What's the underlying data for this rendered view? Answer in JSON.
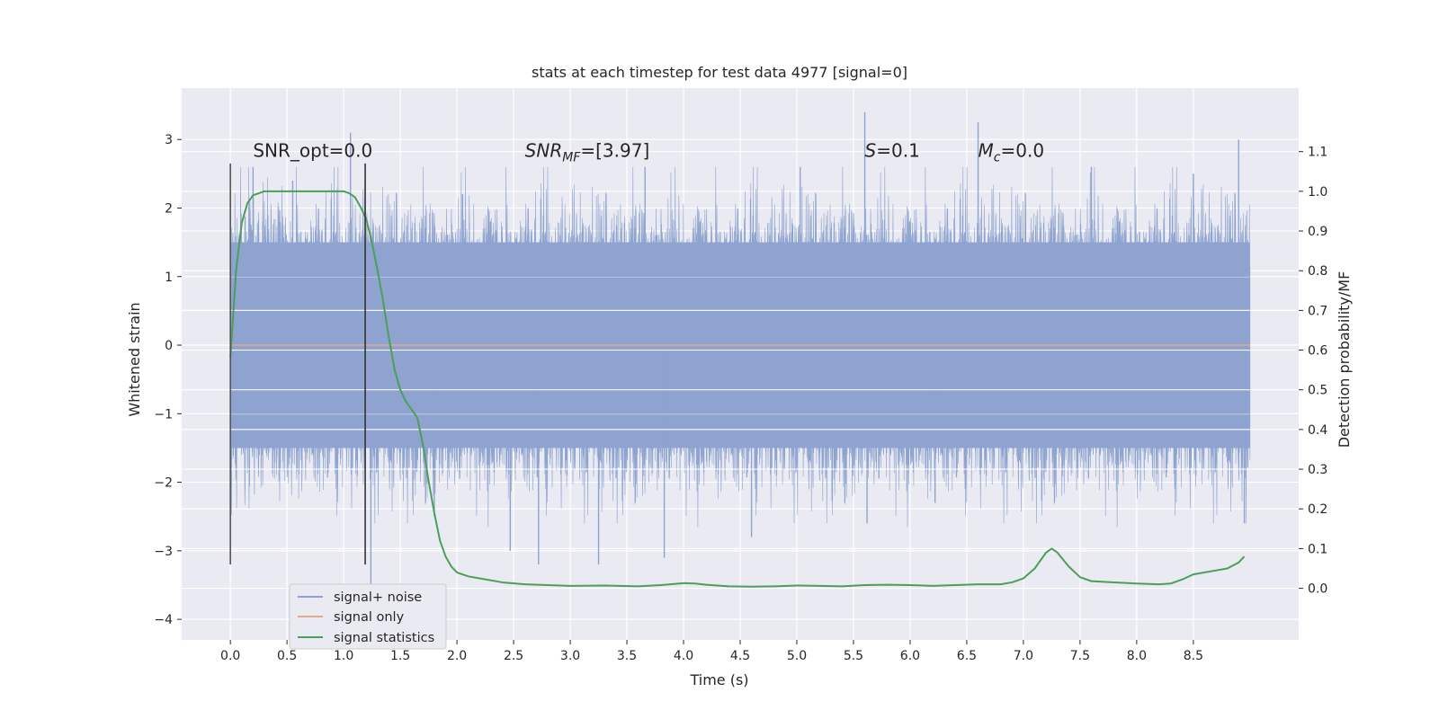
{
  "chart_data": {
    "type": "line",
    "title": "stats at each timestep for test data 4977 [signal=0]",
    "xlabel": "Time (s)",
    "ylabel": "Whitened strain",
    "y2label": "Detection probability/MF",
    "xlim": [
      -0.43,
      9.43
    ],
    "ylim": [
      -4.3,
      3.75
    ],
    "y2lim": [
      -0.13,
      1.26
    ],
    "xticks": [
      0.0,
      0.5,
      1.0,
      1.5,
      2.0,
      2.5,
      3.0,
      3.5,
      4.0,
      4.5,
      5.0,
      5.5,
      6.0,
      6.5,
      7.0,
      7.5,
      8.0,
      8.5
    ],
    "xtick_labels": [
      "0.0",
      "0.5",
      "1.0",
      "1.5",
      "2.0",
      "2.5",
      "3.0",
      "3.5",
      "4.0",
      "4.5",
      "5.0",
      "5.5",
      "6.0",
      "6.5",
      "7.0",
      "7.5",
      "8.0",
      "8.5"
    ],
    "yticks": [
      -4,
      -3,
      -2,
      -1,
      0,
      1,
      2,
      3
    ],
    "ytick_labels": [
      "−4",
      "−3",
      "−2",
      "−1",
      "0",
      "1",
      "2",
      "3"
    ],
    "y2ticks": [
      0.0,
      0.1,
      0.2,
      0.3,
      0.4,
      0.5,
      0.6,
      0.7,
      0.8,
      0.9,
      1.0,
      1.1
    ],
    "y2tick_labels": [
      "0.0",
      "0.1",
      "0.2",
      "0.3",
      "0.4",
      "0.5",
      "0.6",
      "0.7",
      "0.8",
      "0.9",
      "1.0",
      "1.1"
    ],
    "grid": true,
    "legend_position": "lower-left",
    "series": [
      {
        "name": "signal+ noise",
        "color": "#8ea3cf",
        "axis": "left",
        "style": "noise band",
        "x_range": [
          0.0,
          9.0
        ],
        "core_range": [
          -1.5,
          1.5
        ],
        "peaks": [
          {
            "x": 0.2,
            "y": 2.6
          },
          {
            "x": 0.55,
            "y": 2.4
          },
          {
            "x": 1.06,
            "y": 3.1
          },
          {
            "x": 1.24,
            "y": -3.6
          },
          {
            "x": 1.8,
            "y": -2.5
          },
          {
            "x": 2.05,
            "y": 2.2
          },
          {
            "x": 2.47,
            "y": -3.0
          },
          {
            "x": 2.72,
            "y": -3.2
          },
          {
            "x": 3.25,
            "y": -3.2
          },
          {
            "x": 3.66,
            "y": 2.6
          },
          {
            "x": 3.83,
            "y": -3.1
          },
          {
            "x": 4.6,
            "y": -2.8
          },
          {
            "x": 5.03,
            "y": 2.6
          },
          {
            "x": 5.6,
            "y": 3.4
          },
          {
            "x": 5.62,
            "y": -2.6
          },
          {
            "x": 6.22,
            "y": -2.3
          },
          {
            "x": 6.6,
            "y": 3.25
          },
          {
            "x": 7.6,
            "y": 2.6
          },
          {
            "x": 8.5,
            "y": 2.5
          },
          {
            "x": 8.9,
            "y": 3.0
          },
          {
            "x": 8.95,
            "y": -2.6
          }
        ]
      },
      {
        "name": "signal only",
        "color": "#e2a98f",
        "axis": "left",
        "x": [
          0.0,
          9.0
        ],
        "values": [
          0.0,
          0.0
        ]
      },
      {
        "name": "signal statistics",
        "color": "#4c9e5a",
        "axis": "right",
        "x": [
          0.0,
          0.05,
          0.1,
          0.15,
          0.2,
          0.3,
          0.5,
          0.7,
          0.9,
          1.0,
          1.05,
          1.1,
          1.15,
          1.2,
          1.25,
          1.3,
          1.35,
          1.4,
          1.45,
          1.5,
          1.55,
          1.6,
          1.65,
          1.7,
          1.75,
          1.8,
          1.85,
          1.9,
          1.95,
          2.0,
          2.1,
          2.2,
          2.4,
          2.6,
          2.8,
          3.0,
          3.3,
          3.6,
          3.8,
          4.0,
          4.1,
          4.2,
          4.4,
          4.6,
          4.8,
          5.0,
          5.2,
          5.4,
          5.6,
          5.8,
          6.0,
          6.2,
          6.4,
          6.6,
          6.8,
          6.9,
          7.0,
          7.1,
          7.2,
          7.25,
          7.3,
          7.4,
          7.5,
          7.6,
          7.8,
          8.0,
          8.2,
          8.3,
          8.4,
          8.5,
          8.6,
          8.7,
          8.8,
          8.9,
          8.95
        ],
        "values": [
          0.58,
          0.8,
          0.92,
          0.97,
          0.99,
          1.0,
          1.0,
          1.0,
          1.0,
          1.0,
          0.995,
          0.985,
          0.96,
          0.93,
          0.87,
          0.8,
          0.72,
          0.63,
          0.55,
          0.5,
          0.47,
          0.45,
          0.43,
          0.36,
          0.27,
          0.19,
          0.12,
          0.08,
          0.055,
          0.04,
          0.03,
          0.025,
          0.015,
          0.01,
          0.008,
          0.006,
          0.007,
          0.005,
          0.008,
          0.013,
          0.012,
          0.009,
          0.005,
          0.004,
          0.005,
          0.007,
          0.006,
          0.005,
          0.008,
          0.009,
          0.008,
          0.006,
          0.008,
          0.01,
          0.01,
          0.015,
          0.025,
          0.05,
          0.09,
          0.1,
          0.09,
          0.055,
          0.028,
          0.018,
          0.015,
          0.012,
          0.01,
          0.012,
          0.022,
          0.035,
          0.04,
          0.045,
          0.05,
          0.065,
          0.08
        ]
      }
    ],
    "vertical_markers": [
      {
        "x": 0.0,
        "y_range": [
          -3.2,
          2.65
        ],
        "color": "#555555"
      },
      {
        "x": 1.19,
        "y_range": [
          -3.2,
          2.65
        ],
        "color": "#333333"
      }
    ],
    "annotations": [
      {
        "name": "snr-opt",
        "text": "SNR_opt=0.0",
        "x": 0.2,
        "y": 2.75
      },
      {
        "name": "snr-mf",
        "text": "SNRMF=[3.97]",
        "main": "SNR",
        "sub": "MF",
        "tail": "=[3.97]",
        "x": 2.6,
        "y": 2.75
      },
      {
        "name": "s-value",
        "text": "S=0.1",
        "main": "S",
        "tail": "=0.1",
        "x": 5.6,
        "y": 2.75
      },
      {
        "name": "mc-value",
        "text": "Mc=0.0",
        "main": "M",
        "sub": "c",
        "tail": "=0.0",
        "x": 6.6,
        "y": 2.75
      }
    ]
  }
}
